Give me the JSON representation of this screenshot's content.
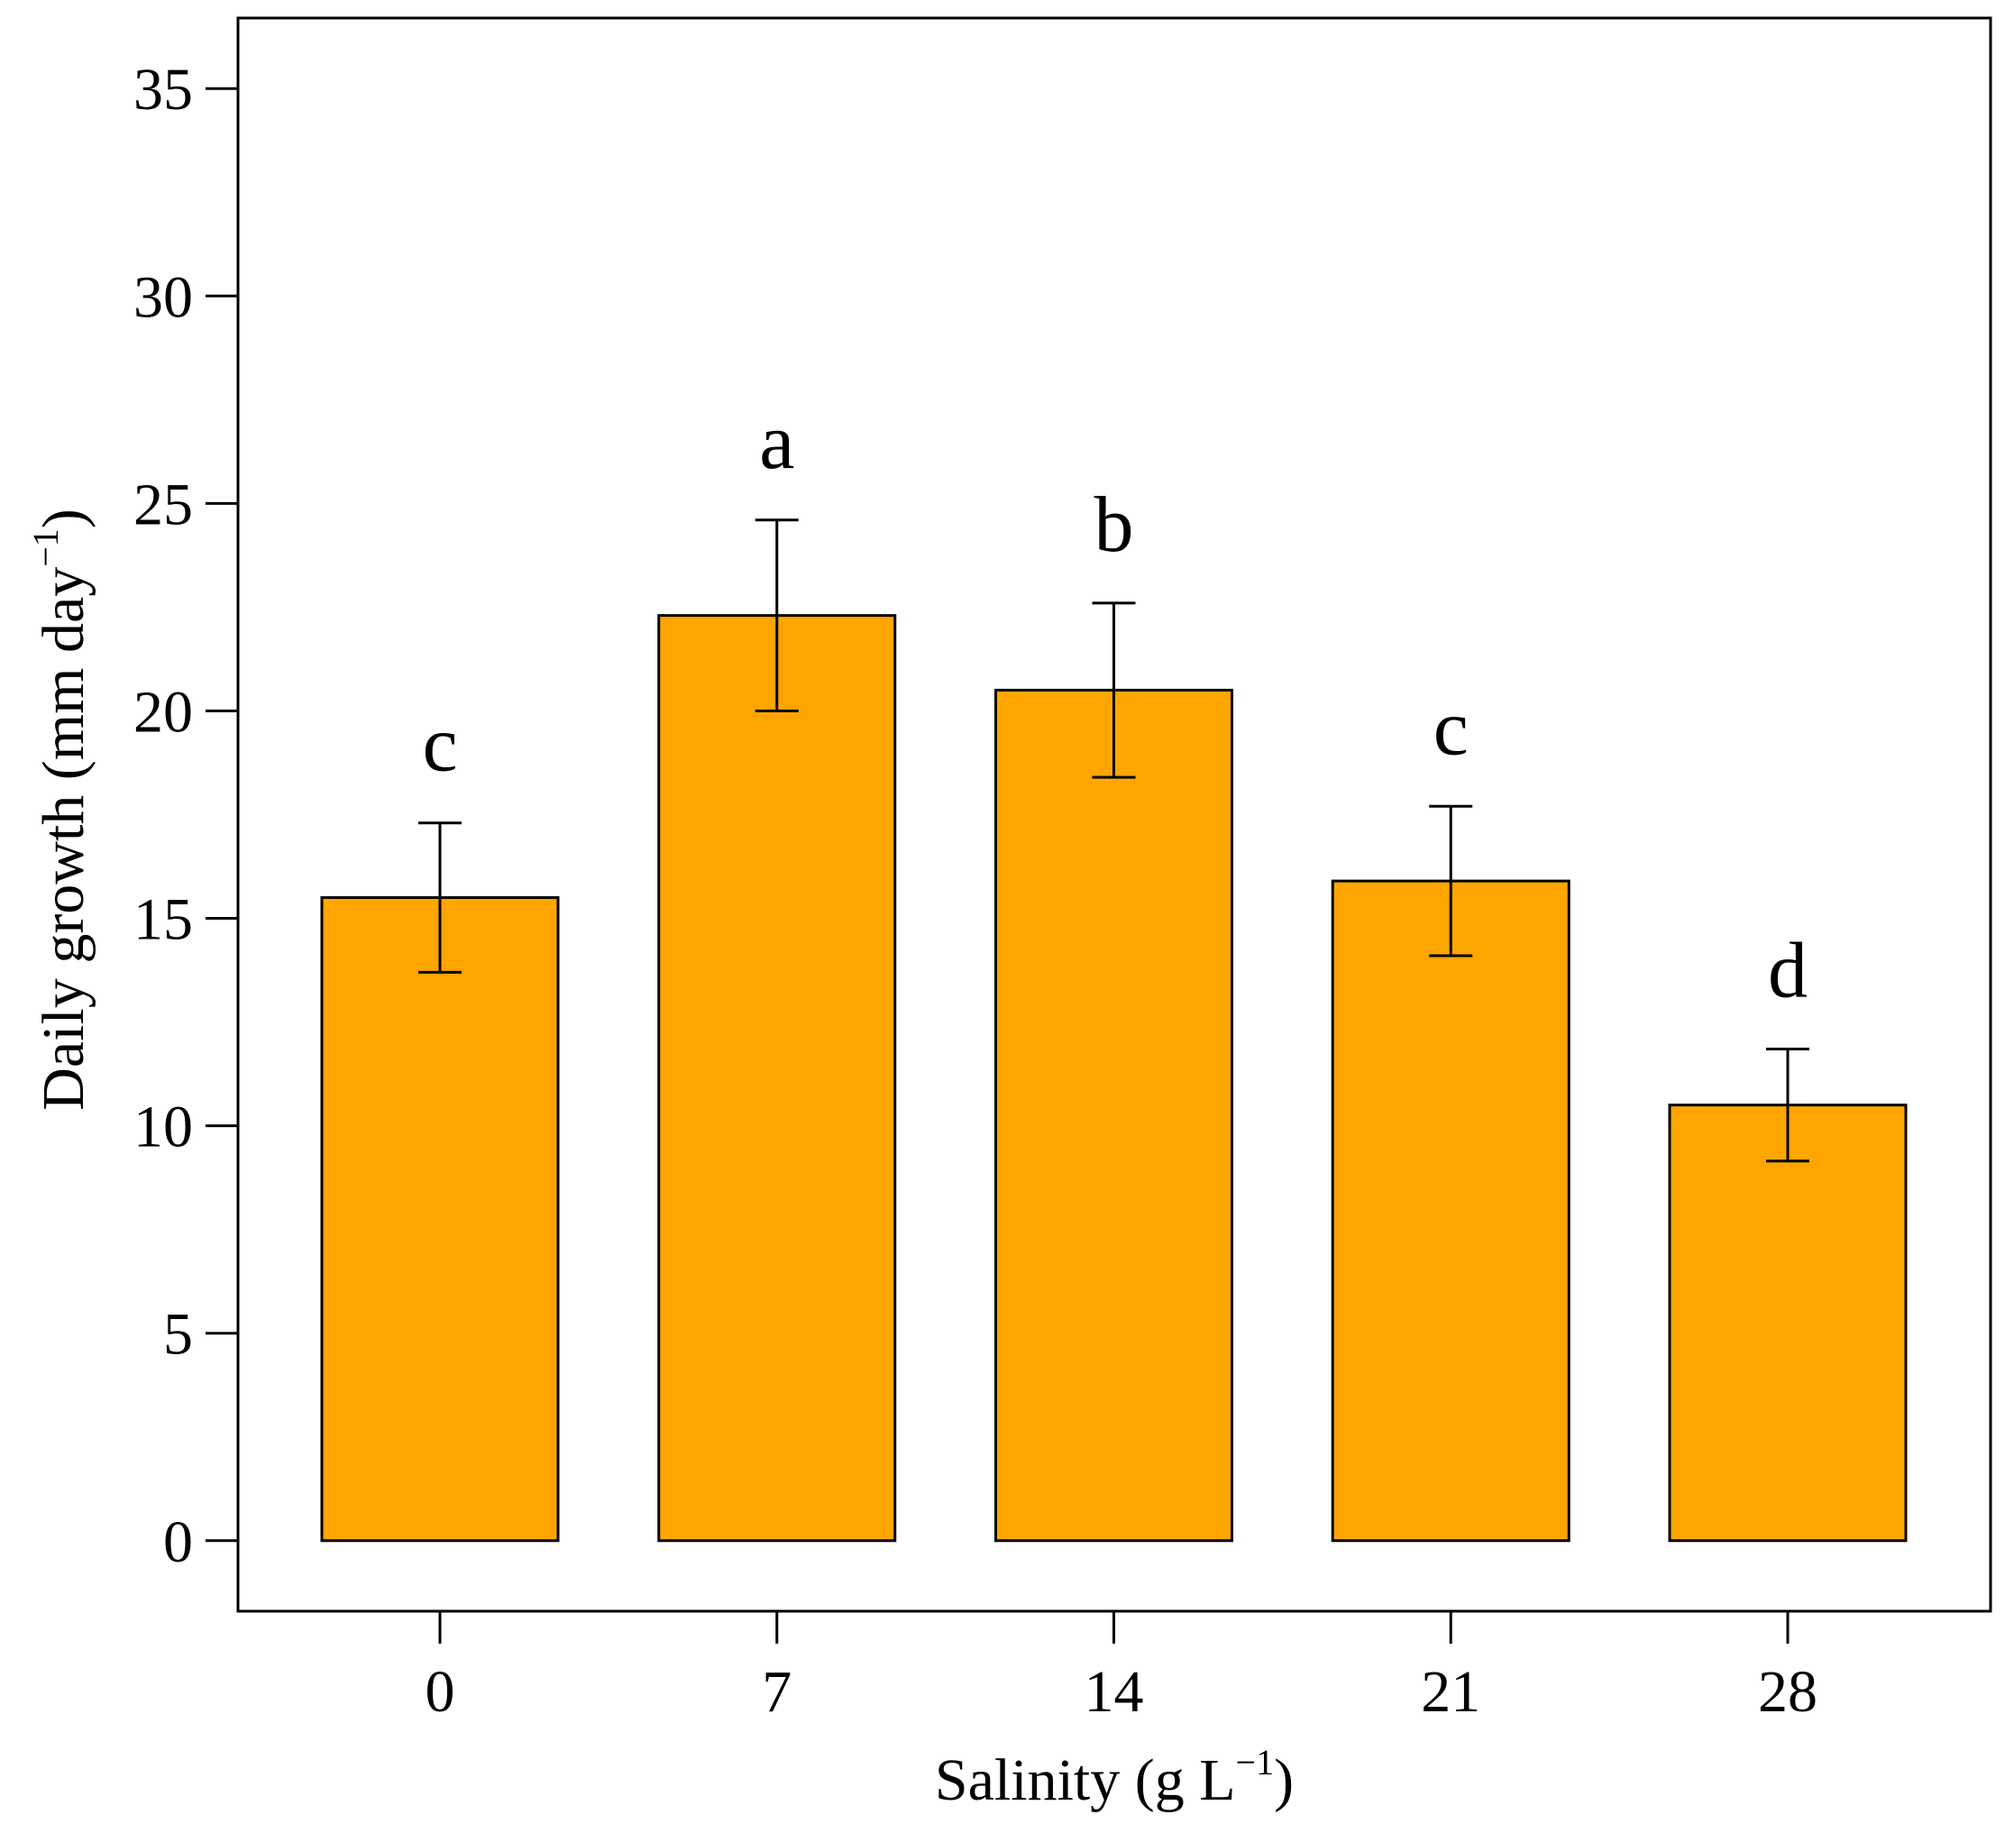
{
  "chart_data": {
    "type": "bar",
    "title": "",
    "xlabel": {
      "text": "Salinity (g  L",
      "sup": "−1",
      "close": ")"
    },
    "ylabel": {
      "text": "Daily growth (mm  day",
      "sup": "−1",
      "close": ")"
    },
    "categories": [
      "0",
      "7",
      "14",
      "21",
      "28"
    ],
    "values": [
      15.5,
      22.3,
      20.5,
      15.9,
      10.5
    ],
    "errors": [
      1.8,
      2.3,
      2.1,
      1.8,
      1.35
    ],
    "significance_letters": [
      "c",
      "a",
      "b",
      "c",
      "d"
    ],
    "ylim": [
      -1.7,
      36.7
    ],
    "yticks": [
      0,
      5,
      10,
      15,
      20,
      25,
      30,
      35
    ],
    "ytick_labels": [
      "0",
      "5",
      "10",
      "15",
      "20",
      "25",
      "30",
      "35"
    ],
    "grid": false,
    "bar_color": "#FFA500",
    "edge_color": "#000000"
  }
}
